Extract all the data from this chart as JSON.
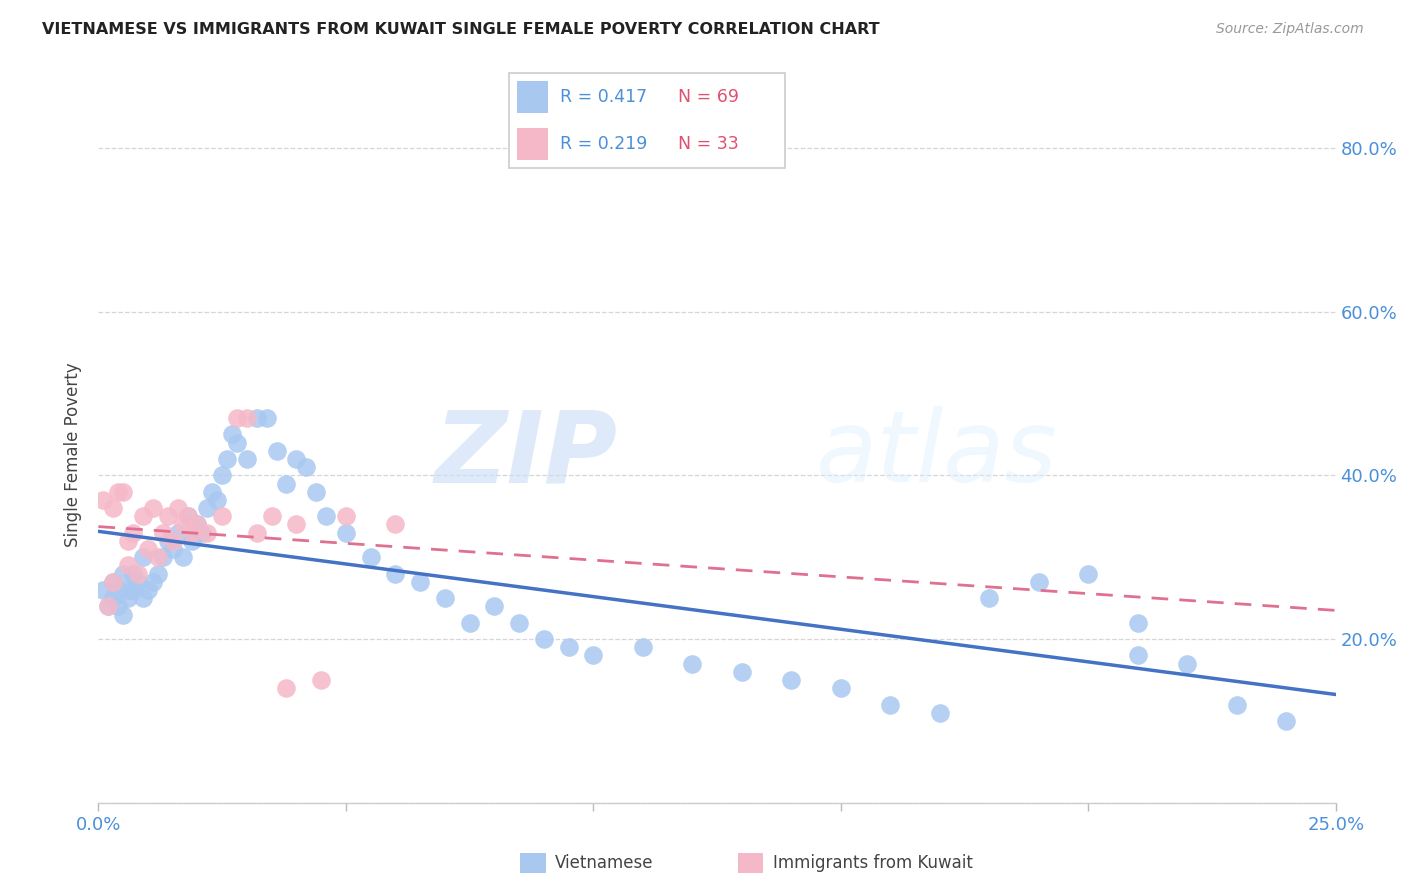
{
  "title": "VIETNAMESE VS IMMIGRANTS FROM KUWAIT SINGLE FEMALE POVERTY CORRELATION CHART",
  "source": "Source: ZipAtlas.com",
  "ylabel_label": "Single Female Poverty",
  "x_min": 0.0,
  "x_max": 0.25,
  "y_min": 0.0,
  "y_max": 0.85,
  "x_ticks": [
    0.0,
    0.05,
    0.1,
    0.15,
    0.2,
    0.25
  ],
  "x_tick_labels": [
    "0.0%",
    "",
    "",
    "",
    "",
    "25.0%"
  ],
  "y_ticks": [
    0.0,
    0.2,
    0.4,
    0.6,
    0.8
  ],
  "y_tick_labels_right": [
    "",
    "20.0%",
    "40.0%",
    "60.0%",
    "80.0%"
  ],
  "legend_r1": "R = 0.417",
  "legend_n1": "N = 69",
  "legend_r2": "R = 0.219",
  "legend_n2": "N = 33",
  "color_blue": "#a8c8f0",
  "color_pink": "#f5b8c8",
  "line_blue": "#4472c4",
  "line_pink": "#e07090",
  "watermark_zip": "ZIP",
  "watermark_atlas": "atlas",
  "viet_x": [
    0.001,
    0.002,
    0.003,
    0.003,
    0.004,
    0.004,
    0.005,
    0.005,
    0.006,
    0.006,
    0.007,
    0.007,
    0.008,
    0.009,
    0.009,
    0.01,
    0.011,
    0.012,
    0.013,
    0.014,
    0.015,
    0.016,
    0.017,
    0.018,
    0.019,
    0.02,
    0.021,
    0.022,
    0.023,
    0.024,
    0.025,
    0.026,
    0.027,
    0.028,
    0.03,
    0.032,
    0.034,
    0.036,
    0.038,
    0.04,
    0.042,
    0.044,
    0.046,
    0.05,
    0.055,
    0.06,
    0.065,
    0.07,
    0.075,
    0.08,
    0.085,
    0.09,
    0.095,
    0.1,
    0.11,
    0.12,
    0.13,
    0.14,
    0.15,
    0.16,
    0.17,
    0.18,
    0.19,
    0.2,
    0.21,
    0.22,
    0.23,
    0.24,
    0.21
  ],
  "viet_y": [
    0.26,
    0.24,
    0.25,
    0.27,
    0.24,
    0.26,
    0.23,
    0.28,
    0.25,
    0.26,
    0.26,
    0.28,
    0.27,
    0.25,
    0.3,
    0.26,
    0.27,
    0.28,
    0.3,
    0.32,
    0.31,
    0.33,
    0.3,
    0.35,
    0.32,
    0.34,
    0.33,
    0.36,
    0.38,
    0.37,
    0.4,
    0.42,
    0.45,
    0.44,
    0.42,
    0.47,
    0.47,
    0.43,
    0.39,
    0.42,
    0.41,
    0.38,
    0.35,
    0.33,
    0.3,
    0.28,
    0.27,
    0.25,
    0.22,
    0.24,
    0.22,
    0.2,
    0.19,
    0.18,
    0.19,
    0.17,
    0.16,
    0.15,
    0.14,
    0.12,
    0.11,
    0.25,
    0.27,
    0.28,
    0.22,
    0.17,
    0.12,
    0.1,
    0.18
  ],
  "kuwait_x": [
    0.001,
    0.002,
    0.003,
    0.003,
    0.004,
    0.005,
    0.006,
    0.006,
    0.007,
    0.008,
    0.009,
    0.01,
    0.011,
    0.012,
    0.013,
    0.014,
    0.015,
    0.016,
    0.017,
    0.018,
    0.019,
    0.02,
    0.022,
    0.025,
    0.028,
    0.03,
    0.032,
    0.035,
    0.038,
    0.04,
    0.045,
    0.05,
    0.06
  ],
  "kuwait_y": [
    0.37,
    0.24,
    0.36,
    0.27,
    0.38,
    0.38,
    0.29,
    0.32,
    0.33,
    0.28,
    0.35,
    0.31,
    0.36,
    0.3,
    0.33,
    0.35,
    0.32,
    0.36,
    0.34,
    0.35,
    0.33,
    0.34,
    0.33,
    0.35,
    0.47,
    0.47,
    0.33,
    0.35,
    0.14,
    0.34,
    0.15,
    0.35,
    0.34
  ]
}
